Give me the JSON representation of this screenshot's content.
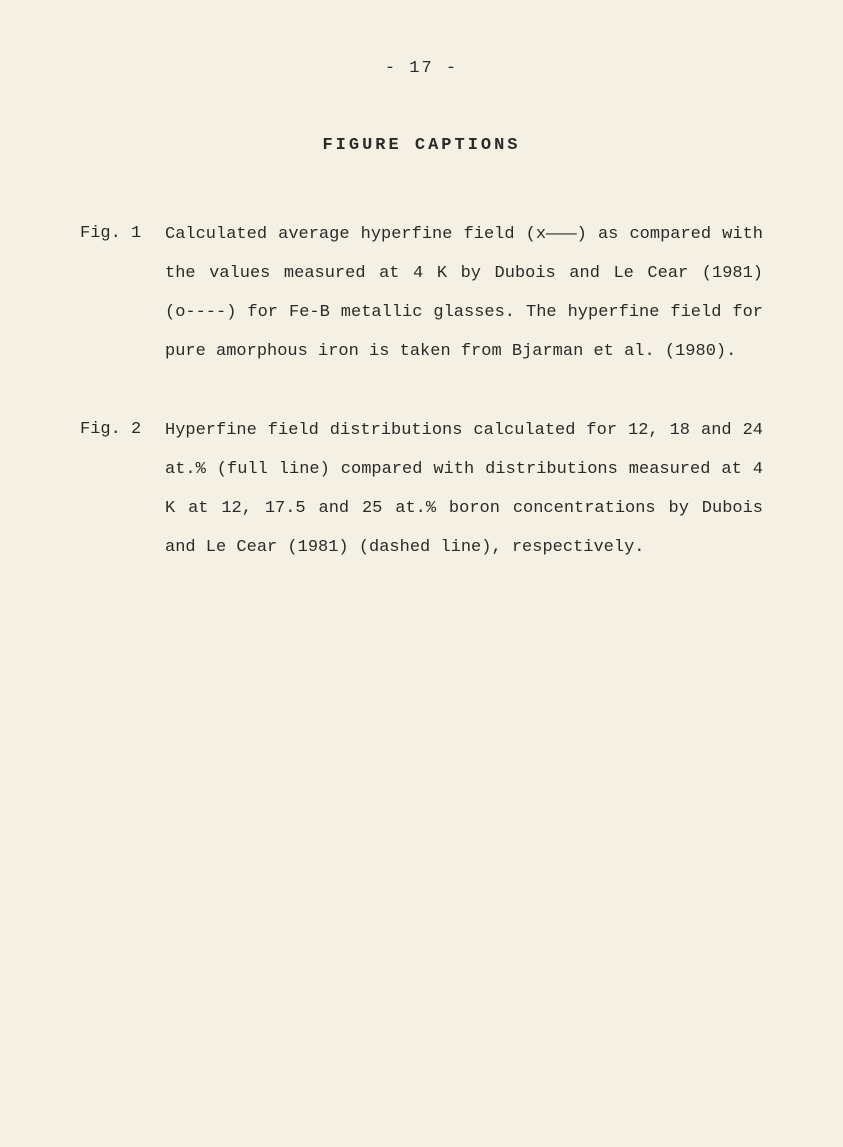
{
  "page_number": "- 17 -",
  "section_title": "FIGURE CAPTIONS",
  "figures": [
    {
      "label": "Fig. 1",
      "text": "Calculated average hyperfine field (x———) as compared with the values measured at 4 K by Dubois and Le Cear (1981) (o----) for Fe-B metallic glasses. The hyperfine field for pure amorphous iron is taken from Bjarman et al. (1980)."
    },
    {
      "label": "Fig. 2",
      "text": "Hyperfine field distributions calculated for 12, 18 and 24 at.% (full line) compared with distributions measured at 4 K at 12, 17.5 and 25 at.% boron concentrations by Dubois and Le Cear (1981) (dashed line), respectively."
    }
  ],
  "colors": {
    "background": "#f5f0e4",
    "text": "#2a2a2a"
  },
  "typography": {
    "font_family": "Courier New",
    "font_size": 17,
    "line_height": 2.2
  }
}
